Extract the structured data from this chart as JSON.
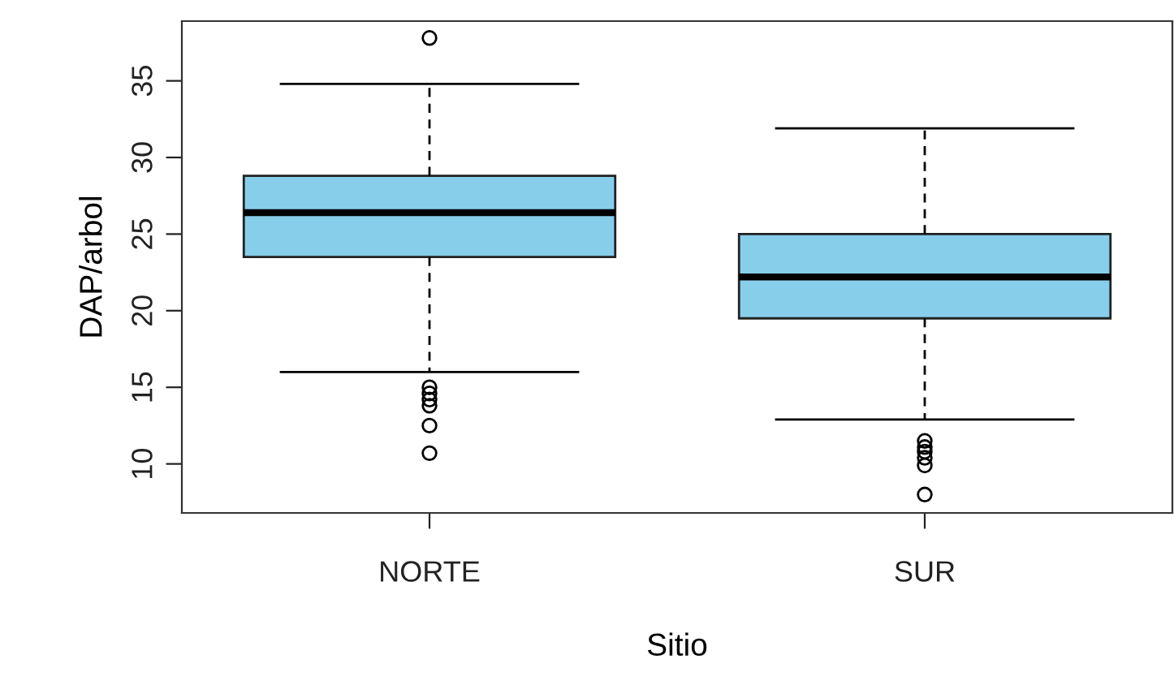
{
  "chart_data": {
    "type": "box",
    "xlabel": "Sitio",
    "ylabel": "DAP/arbol",
    "categories": [
      "NORTE",
      "SUR"
    ],
    "series": [
      {
        "color": "#87ceeb",
        "boxes": [
          {
            "low": 16.0,
            "q1": 23.5,
            "median": 26.4,
            "q3": 28.8,
            "high": 34.8,
            "outliers": [
              37.8,
              15.0,
              14.6,
              14.2,
              13.8,
              12.5,
              10.7
            ]
          },
          {
            "low": 12.9,
            "q1": 19.5,
            "median": 22.2,
            "q3": 25.0,
            "high": 31.9,
            "outliers": [
              11.5,
              11.1,
              10.8,
              10.4,
              9.9,
              8.0
            ]
          }
        ]
      }
    ],
    "ylim": [
      6.8,
      38.9
    ],
    "yticks": [
      10,
      15,
      20,
      25,
      30,
      35
    ],
    "grid": false,
    "legend": false
  }
}
